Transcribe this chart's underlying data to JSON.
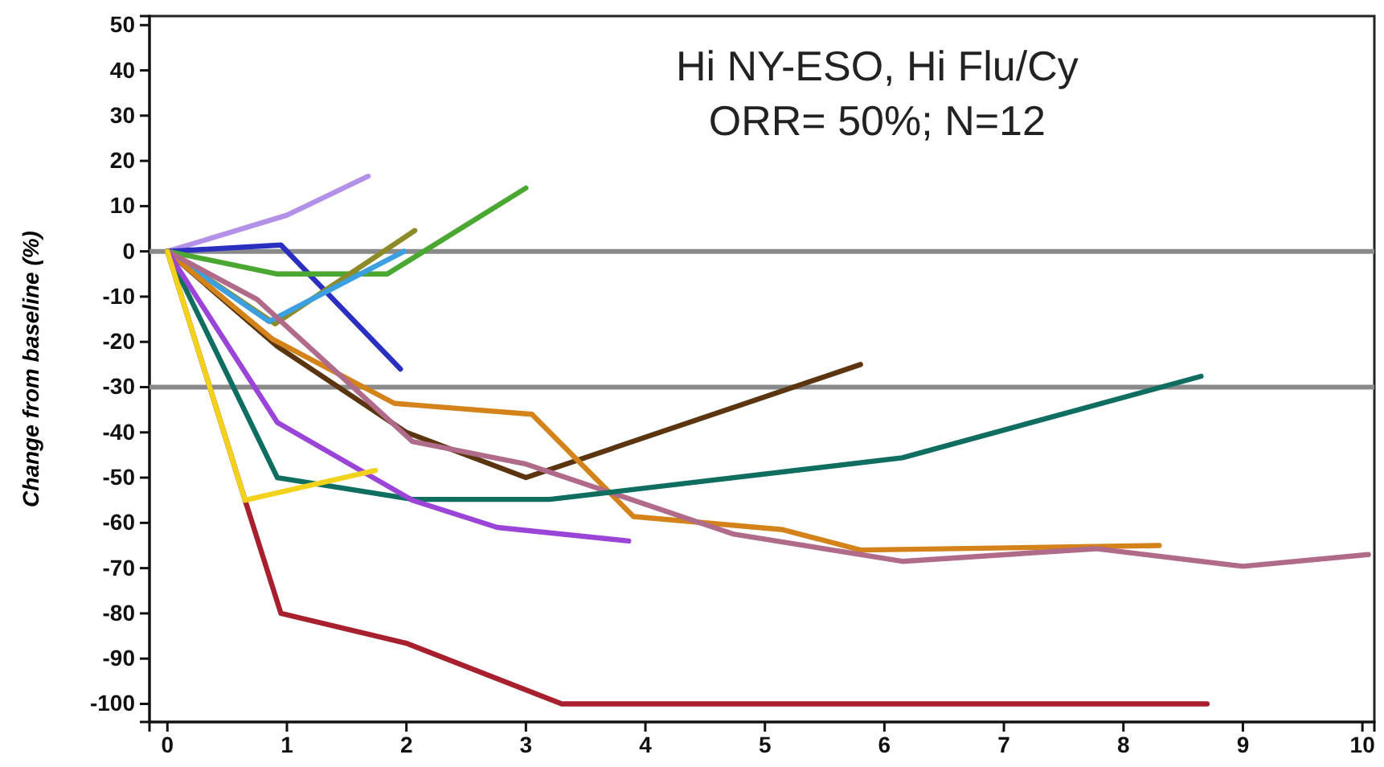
{
  "chart_data": {
    "type": "line",
    "ylabel": "Change from baseline (%)",
    "annotations": [
      "Hi NY-ESO, Hi Flu/Cy",
      "ORR= 50%; N=12"
    ],
    "xlim": [
      -0.15,
      10.1
    ],
    "ylim": [
      -104,
      52
    ],
    "xticks": [
      0,
      1,
      2,
      3,
      4,
      5,
      6,
      7,
      8,
      9,
      10
    ],
    "yticks": [
      -100,
      -90,
      -80,
      -70,
      -60,
      -50,
      -40,
      -30,
      -20,
      -10,
      0,
      10,
      20,
      30,
      40,
      50
    ],
    "ref_lines": [
      {
        "axis": "y",
        "value": 0,
        "color": "#8a8a8a"
      },
      {
        "axis": "y",
        "value": -30,
        "color": "#8a8a8a"
      }
    ],
    "grid": false,
    "line_style": "solid",
    "series": [
      {
        "color": "#b491e8",
        "x": [
          0,
          1,
          1.68
        ],
        "values": [
          0,
          8,
          16.6
        ]
      },
      {
        "color": "#2a2fc0",
        "x": [
          0,
          0.95,
          1.95
        ],
        "values": [
          0,
          1.4,
          -26
        ]
      },
      {
        "color": "#4aa832",
        "x": [
          0,
          0.92,
          1.84,
          3
        ],
        "values": [
          0,
          -5,
          -5,
          14
        ]
      },
      {
        "color": "#8d8a2a",
        "x": [
          0,
          0.9,
          2.07
        ],
        "values": [
          0,
          -16,
          4.6
        ]
      },
      {
        "color": "#3b9fe0",
        "x": [
          0,
          0.85,
          1.98
        ],
        "values": [
          0,
          -15.5,
          0
        ]
      },
      {
        "color": "#5a3510",
        "x": [
          0,
          0.92,
          2,
          3,
          5.8
        ],
        "values": [
          0,
          -21,
          -40,
          -50,
          -25
        ]
      },
      {
        "color": "#d4821a",
        "x": [
          0,
          0.88,
          1.9,
          3.05,
          3.9,
          5.15,
          5.8,
          8.3
        ],
        "values": [
          0,
          -19.4,
          -33.6,
          -36,
          -58.6,
          -61.5,
          -66,
          -65
        ]
      },
      {
        "color": "#b06a8a",
        "x": [
          0,
          0.75,
          2.05,
          3,
          4.74,
          6.15,
          7.77,
          9,
          10.05
        ],
        "values": [
          0,
          -10.6,
          -42,
          -47,
          -62.5,
          -68.5,
          -65.7,
          -69.6,
          -67
        ]
      },
      {
        "color": "#0f6e60",
        "x": [
          0,
          0.92,
          2.05,
          3.2,
          6.15,
          8.65
        ],
        "values": [
          0,
          -50,
          -54.8,
          -54.8,
          -45.6,
          -27.6
        ]
      },
      {
        "color": "#9a45d8",
        "x": [
          0,
          0.92,
          2.05,
          2.76,
          3.86
        ],
        "values": [
          0,
          -37.8,
          -55,
          -61,
          -64
        ]
      },
      {
        "color": "#a8202e",
        "x": [
          0,
          0.65,
          0.95,
          2,
          3.3,
          6.2,
          8.7
        ],
        "values": [
          0,
          -55,
          -80,
          -86.6,
          -100,
          -100,
          -100
        ]
      },
      {
        "color": "#f2d21a",
        "x": [
          0,
          0.65,
          1.74
        ],
        "values": [
          0,
          -55,
          -48.4
        ]
      }
    ]
  }
}
